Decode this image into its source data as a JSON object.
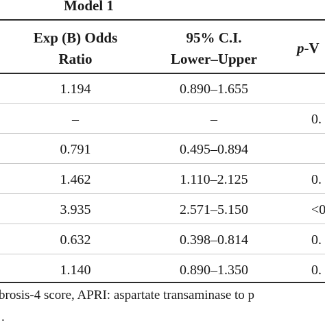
{
  "table": {
    "model_title": "Model 1",
    "headers": {
      "odds_line1": "Exp (B) Odds",
      "odds_line2": "Ratio",
      "ci_line1": "95% C.I.",
      "ci_line2": "Lower–Upper",
      "p_italic": "p",
      "p_rest": "-V"
    },
    "rows": [
      {
        "odds": "1.194",
        "ci": "0.890–1.655",
        "p": ""
      },
      {
        "odds": "–",
        "ci": "–",
        "p": "0."
      },
      {
        "odds": "0.791",
        "ci": "0.495–0.894",
        "p": ""
      },
      {
        "odds": "1.462",
        "ci": "1.110–2.125",
        "p": "0."
      },
      {
        "odds": "3.935",
        "ci": "2.571–5.150",
        "p": "<0"
      },
      {
        "odds": "0.632",
        "ci": "0.398–0.814",
        "p": "0."
      },
      {
        "odds": "1.140",
        "ci": "0.890–1.350",
        "p": "0."
      }
    ],
    "footnote": "brosis-4 score, APRI: aspartate transaminase to p",
    "footnote_line2": "."
  }
}
